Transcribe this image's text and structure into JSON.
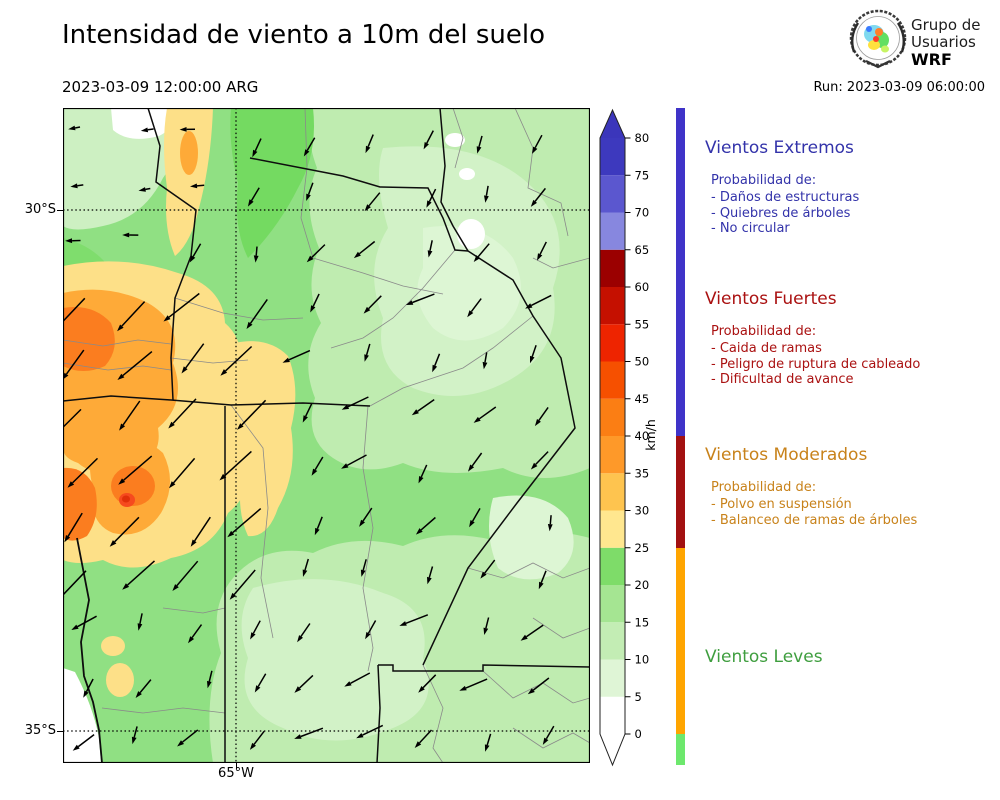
{
  "header": {
    "title": "Intensidad de viento a 10m del suelo",
    "valid_datetime": "2023-03-09 12:00:00 ARG",
    "run_label": "Run: 2023-03-09 06:00:00",
    "logo": {
      "line1": "Grupo de",
      "line2": "Usuarios",
      "line3": "WRF"
    }
  },
  "axes": {
    "lat30": "30°S",
    "lat35": "35°S",
    "lon65": "65°W"
  },
  "colorbar": {
    "unit": "km/h",
    "tick_values": [
      0,
      5,
      10,
      15,
      20,
      25,
      30,
      35,
      40,
      45,
      50,
      55,
      60,
      65,
      70,
      75,
      80
    ],
    "over_color": "#3b36bb",
    "under_color": "#ffffff",
    "levels": [
      {
        "from": 0,
        "to": 5,
        "color": "#ffffff"
      },
      {
        "from": 5,
        "to": 10,
        "color": "#dff5d6"
      },
      {
        "from": 10,
        "to": 15,
        "color": "#c3edb4"
      },
      {
        "from": 15,
        "to": 20,
        "color": "#a5e592"
      },
      {
        "from": 20,
        "to": 25,
        "color": "#7edc69"
      },
      {
        "from": 25,
        "to": 30,
        "color": "#ffe78f"
      },
      {
        "from": 30,
        "to": 35,
        "color": "#fec44f"
      },
      {
        "from": 35,
        "to": 40,
        "color": "#fe9929"
      },
      {
        "from": 40,
        "to": 45,
        "color": "#fb7e14"
      },
      {
        "from": 45,
        "to": 50,
        "color": "#f65000"
      },
      {
        "from": 50,
        "to": 55,
        "color": "#ee2400"
      },
      {
        "from": 55,
        "to": 60,
        "color": "#c51000"
      },
      {
        "from": 60,
        "to": 65,
        "color": "#9b0000"
      },
      {
        "from": 65,
        "to": 70,
        "color": "#8787df"
      },
      {
        "from": 70,
        "to": 75,
        "color": "#5b57cf"
      },
      {
        "from": 75,
        "to": 80,
        "color": "#3d39be"
      }
    ]
  },
  "wind_categories": [
    {
      "label": "Vientos Extremos",
      "color": "#3f33c8",
      "min_kmh": 65
    },
    {
      "label": "Vientos Fuertes",
      "color": "#a21111",
      "min_kmh": 40
    },
    {
      "label": "Vientos Moderados",
      "color": "#ffa500",
      "min_kmh": 25
    },
    {
      "label": "Vientos Leves",
      "color": "#6de86d",
      "min_kmh": 0
    }
  ],
  "legend": {
    "sections": [
      {
        "id": "extremos",
        "title": "Vientos Extremos",
        "color": "#3333aa",
        "prob": "Probabilidad de:",
        "items": [
          "- Daños de estructuras",
          "- Quiebres de árboles",
          "- No circular"
        ]
      },
      {
        "id": "fuertes",
        "title": "Vientos Fuertes",
        "color": "#aa1111",
        "prob": "Probabilidad de:",
        "items": [
          "- Caida de ramas",
          "- Peligro de ruptura de cableado",
          "- Dificultad de avance"
        ]
      },
      {
        "id": "moderados",
        "title": "Vientos Moderados",
        "color": "#c8821a",
        "prob": "Probabilidad de:",
        "items": [
          "- Polvo en suspensión",
          "- Balanceo de ramas de árboles"
        ]
      },
      {
        "id": "leves",
        "title": "Vientos Leves",
        "color": "#3f9e3f",
        "prob": "",
        "items": []
      }
    ]
  },
  "wind_field": {
    "overlay": "wind direction arrows, pointing mostly southwest (flow from northeast)",
    "grid_step_x": 57,
    "grid_step_y": 54
  },
  "chart_data": {
    "type": "heatmap",
    "title": "Intensidad de viento a 10m del suelo",
    "valid_time": "2023-03-09 12:00:00 ARG",
    "run_time": "Run: 2023-03-09 06:00:00",
    "unit": "km/h",
    "x_tick_labels": [
      "65°W"
    ],
    "y_tick_labels": [
      "30°S",
      "35°S"
    ],
    "colorbar_range": [
      0,
      80
    ],
    "colorbar_ticks": [
      0,
      5,
      10,
      15,
      20,
      25,
      30,
      35,
      40,
      45,
      50,
      55,
      60,
      65,
      70,
      75,
      80
    ],
    "legend_position": "right",
    "grid": "dotted lat/lon lines at 30°S, 35°S and 65°W",
    "notable_values": [
      "western band of moderate winds ~25-45 km/h",
      "isolated peak ~45-50 km/h in the west",
      "light winds 0-25 km/h over centre and east"
    ]
  }
}
